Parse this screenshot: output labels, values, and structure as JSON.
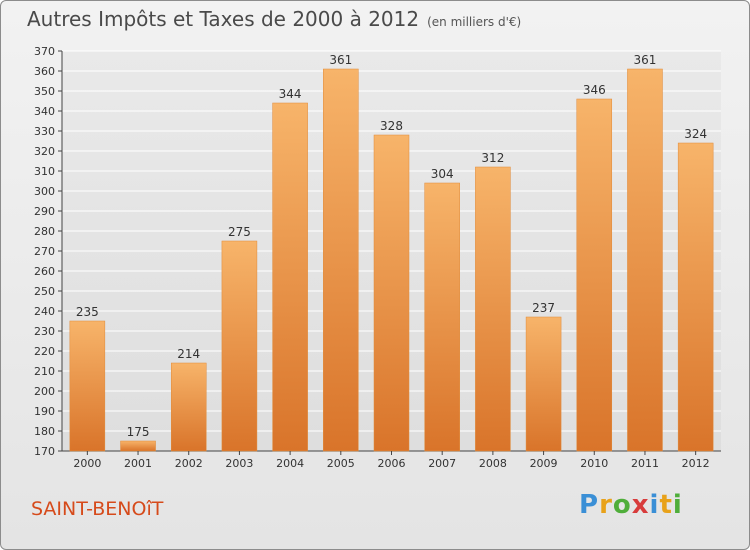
{
  "title": "Autres Impôts et Taxes de 2000 à 2012",
  "subtitle": "(en milliers d'€)",
  "place": "SAINT-BENOîT",
  "logo": {
    "letters": [
      "P",
      "r",
      "o",
      "x",
      "i",
      "t",
      "i"
    ],
    "colors": [
      "#3a8fd6",
      "#e8a21a",
      "#4fae3a",
      "#d83c3c",
      "#3a8fd6",
      "#e8a21a",
      "#4fae3a"
    ]
  },
  "colors": {
    "bar": "#f0953a",
    "bar_light": "#f7b46a",
    "bar_dark": "#d9742a",
    "axis": "#444444",
    "grid": "#ffffff"
  },
  "chart_data": {
    "type": "bar",
    "categories": [
      "2000",
      "2001",
      "2002",
      "2003",
      "2004",
      "2005",
      "2006",
      "2007",
      "2008",
      "2009",
      "2010",
      "2011",
      "2012"
    ],
    "values": [
      235,
      175,
      214,
      275,
      344,
      361,
      328,
      304,
      312,
      237,
      346,
      361,
      324
    ],
    "title": "Autres Impôts et Taxes de 2000 à 2012",
    "subtitle": "(en milliers d'€)",
    "xlabel": "",
    "ylabel": "",
    "ylim": [
      170,
      370
    ],
    "yticks": [
      170,
      180,
      190,
      200,
      210,
      220,
      230,
      240,
      250,
      260,
      270,
      280,
      290,
      300,
      310,
      320,
      330,
      340,
      350,
      360,
      370
    ],
    "grid": true,
    "legend": "none"
  }
}
